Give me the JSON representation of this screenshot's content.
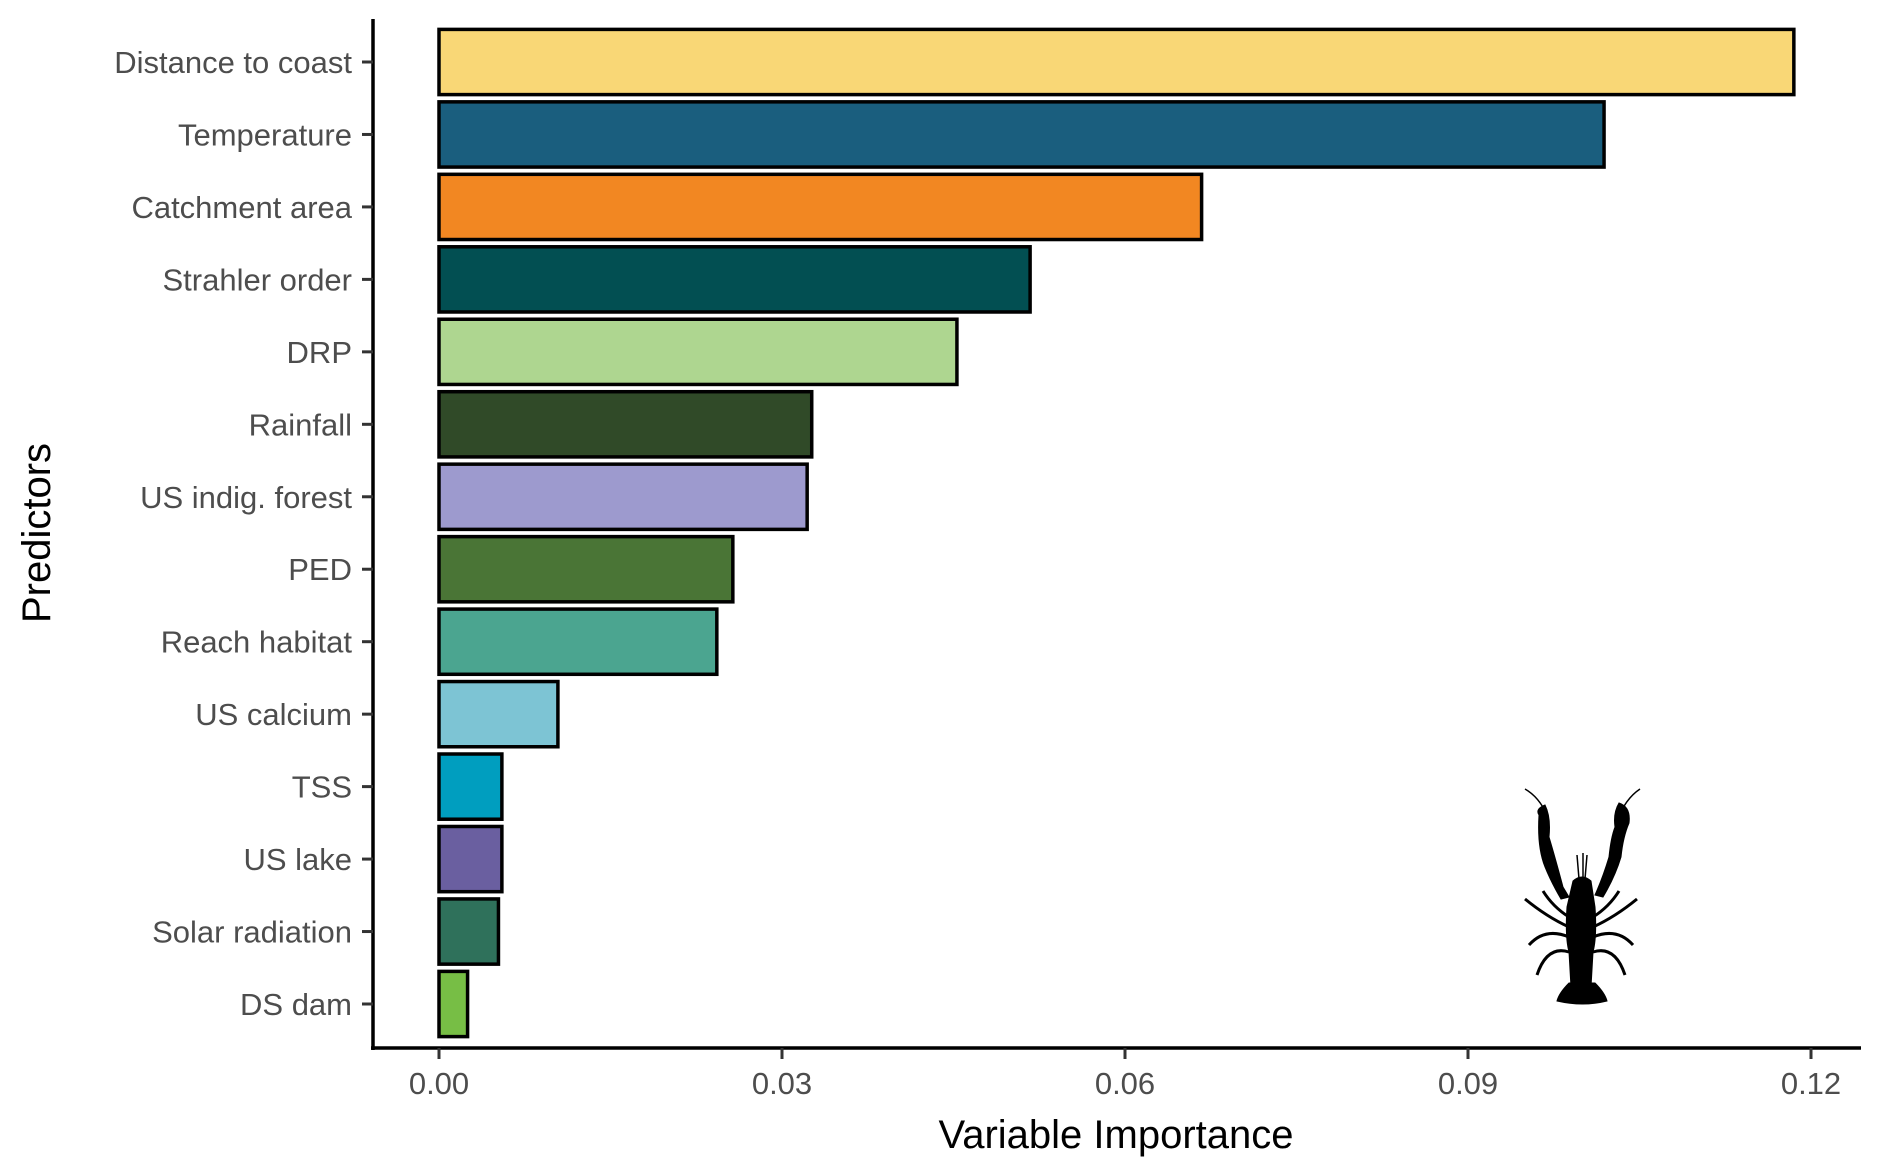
{
  "chart_data": {
    "type": "bar",
    "orientation": "horizontal",
    "title": "",
    "xlabel": "Variable Importance",
    "ylabel": "Predictors",
    "xlim": [
      -0.0045,
      0.1245
    ],
    "xticks": [
      0.0,
      0.03,
      0.06,
      0.09,
      0.12
    ],
    "xtick_labels": [
      "0.00",
      "0.03",
      "0.06",
      "0.09",
      "0.12"
    ],
    "grid": false,
    "legend": "none",
    "categories": [
      "Distance to coast",
      "Temperature",
      "Catchment area",
      "Strahler order",
      "DRP",
      "Rainfall",
      "US indig. forest",
      "PED",
      "Reach habitat",
      "US calcium",
      "TSS",
      "US lake",
      "Solar radiation",
      "DS dam"
    ],
    "values": [
      0.1185,
      0.1019,
      0.0667,
      0.0517,
      0.0453,
      0.0326,
      0.0322,
      0.0257,
      0.0243,
      0.0104,
      0.0055,
      0.0055,
      0.0052,
      0.0025
    ],
    "colors": [
      "#F9D776",
      "#1A5E7E",
      "#F28722",
      "#024F52",
      "#AED690",
      "#304A28",
      "#9D9ACE",
      "#4A7536",
      "#4BA590",
      "#7DC4D4",
      "#009EBF",
      "#6A5FA0",
      "#2F715B",
      "#77BE45"
    ],
    "bar_outline_color": "#000000",
    "annotations": [
      {
        "type": "silhouette",
        "name": "crayfish-icon",
        "position": "bottom-right"
      }
    ]
  }
}
